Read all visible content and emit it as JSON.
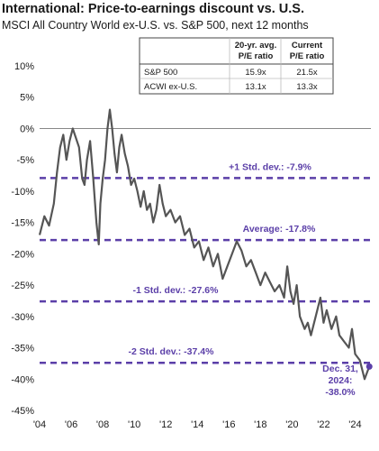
{
  "header": {
    "title": "International: Price-to-earnings discount vs. U.S.",
    "subtitle": "MSCI All Country World ex-U.S. vs. S&P 500, next 12 months"
  },
  "colors": {
    "line": "#555555",
    "bands": "#5b3fa8",
    "annotation": "#5b3fa8"
  },
  "table": {
    "headers": [
      "",
      "20-yr. avg.\nP/E ratio",
      "Current\nP/E ratio"
    ],
    "rows": [
      [
        "S&P 500",
        "15.9x",
        "21.5x"
      ],
      [
        "ACWI ex-U.S.",
        "13.1x",
        "13.3x"
      ]
    ]
  },
  "chart_data": {
    "type": "line",
    "title": "International: Price-to-earnings discount vs. U.S.",
    "subtitle": "MSCI All Country World ex-U.S. vs. S&P 500, next 12 months",
    "xlabel": "",
    "ylabel": "",
    "x_ticks": [
      "'04",
      "'06",
      "'08",
      "'10",
      "'12",
      "'14",
      "'16",
      "'18",
      "'20",
      "'22",
      "'24"
    ],
    "xlim": [
      2004,
      2025
    ],
    "y_ticks": [
      "10%",
      "5%",
      "0%",
      "-5%",
      "-10%",
      "-15%",
      "-20%",
      "-25%",
      "-30%",
      "-35%",
      "-40%",
      "-45%"
    ],
    "ylim": [
      -45,
      10
    ],
    "grid": false,
    "series": [
      {
        "values_pct": [
          [
            2004.0,
            -17.0
          ],
          [
            2004.3,
            -14.0
          ],
          [
            2004.6,
            -15.5
          ],
          [
            2004.9,
            -12.0
          ],
          [
            2005.1,
            -7.0
          ],
          [
            2005.3,
            -3.0
          ],
          [
            2005.5,
            -1.0
          ],
          [
            2005.7,
            -5.0
          ],
          [
            2005.9,
            -2.0
          ],
          [
            2006.1,
            0.0
          ],
          [
            2006.3,
            -1.5
          ],
          [
            2006.5,
            -3.0
          ],
          [
            2006.7,
            -8.0
          ],
          [
            2006.85,
            -9.0
          ],
          [
            2007.0,
            -5.0
          ],
          [
            2007.2,
            -2.0
          ],
          [
            2007.4,
            -8.0
          ],
          [
            2007.6,
            -15.0
          ],
          [
            2007.75,
            -18.5
          ],
          [
            2007.85,
            -12.0
          ],
          [
            2008.0,
            -8.0
          ],
          [
            2008.15,
            -5.0
          ],
          [
            2008.3,
            0.0
          ],
          [
            2008.45,
            3.0
          ],
          [
            2008.6,
            0.0
          ],
          [
            2008.75,
            -4.0
          ],
          [
            2008.9,
            -7.0
          ],
          [
            2009.05,
            -3.0
          ],
          [
            2009.2,
            -1.0
          ],
          [
            2009.4,
            -4.0
          ],
          [
            2009.6,
            -6.0
          ],
          [
            2009.8,
            -9.0
          ],
          [
            2010.0,
            -8.0
          ],
          [
            2010.2,
            -10.0
          ],
          [
            2010.4,
            -12.5
          ],
          [
            2010.6,
            -10.0
          ],
          [
            2010.8,
            -13.0
          ],
          [
            2011.0,
            -12.0
          ],
          [
            2011.2,
            -15.0
          ],
          [
            2011.4,
            -13.0
          ],
          [
            2011.6,
            -9.0
          ],
          [
            2011.8,
            -12.0
          ],
          [
            2012.0,
            -14.0
          ],
          [
            2012.3,
            -13.0
          ],
          [
            2012.6,
            -15.0
          ],
          [
            2012.9,
            -14.0
          ],
          [
            2013.2,
            -17.0
          ],
          [
            2013.5,
            -16.0
          ],
          [
            2013.8,
            -19.0
          ],
          [
            2014.1,
            -18.0
          ],
          [
            2014.4,
            -21.0
          ],
          [
            2014.7,
            -19.0
          ],
          [
            2015.0,
            -22.0
          ],
          [
            2015.3,
            -20.0
          ],
          [
            2015.6,
            -24.0
          ],
          [
            2015.9,
            -22.0
          ],
          [
            2016.2,
            -20.0
          ],
          [
            2016.5,
            -18.0
          ],
          [
            2016.8,
            -19.5
          ],
          [
            2017.1,
            -22.0
          ],
          [
            2017.4,
            -21.0
          ],
          [
            2017.7,
            -23.0
          ],
          [
            2018.0,
            -25.0
          ],
          [
            2018.3,
            -23.0
          ],
          [
            2018.6,
            -24.5
          ],
          [
            2018.9,
            -26.0
          ],
          [
            2019.2,
            -25.0
          ],
          [
            2019.5,
            -27.0
          ],
          [
            2019.7,
            -22.0
          ],
          [
            2019.9,
            -26.0
          ],
          [
            2020.1,
            -28.0
          ],
          [
            2020.3,
            -25.0
          ],
          [
            2020.5,
            -30.0
          ],
          [
            2020.8,
            -32.0
          ],
          [
            2021.0,
            -31.0
          ],
          [
            2021.2,
            -33.0
          ],
          [
            2021.5,
            -30.0
          ],
          [
            2021.8,
            -27.0
          ],
          [
            2022.0,
            -31.0
          ],
          [
            2022.2,
            -29.0
          ],
          [
            2022.5,
            -32.0
          ],
          [
            2022.8,
            -30.0
          ],
          [
            2023.0,
            -33.0
          ],
          [
            2023.3,
            -34.0
          ],
          [
            2023.6,
            -35.0
          ],
          [
            2023.8,
            -32.0
          ],
          [
            2024.0,
            -36.0
          ],
          [
            2024.3,
            -37.0
          ],
          [
            2024.6,
            -40.0
          ],
          [
            2024.9,
            -38.0
          ]
        ],
        "last_point": {
          "label_line1": "Dec. 31,",
          "label_line2": "2024:",
          "label_line3": "-38.0%",
          "x": 2024.9,
          "y": -38.0
        }
      }
    ],
    "reference_lines": [
      {
        "label": "+1 Std. dev.: -7.9%",
        "y": -7.9
      },
      {
        "label": "Average: -17.8%",
        "y": -17.8
      },
      {
        "label": "-1 Std. dev.: -27.6%",
        "y": -27.6
      },
      {
        "label": "-2 Std. dev.: -37.4%",
        "y": -37.4
      }
    ]
  }
}
